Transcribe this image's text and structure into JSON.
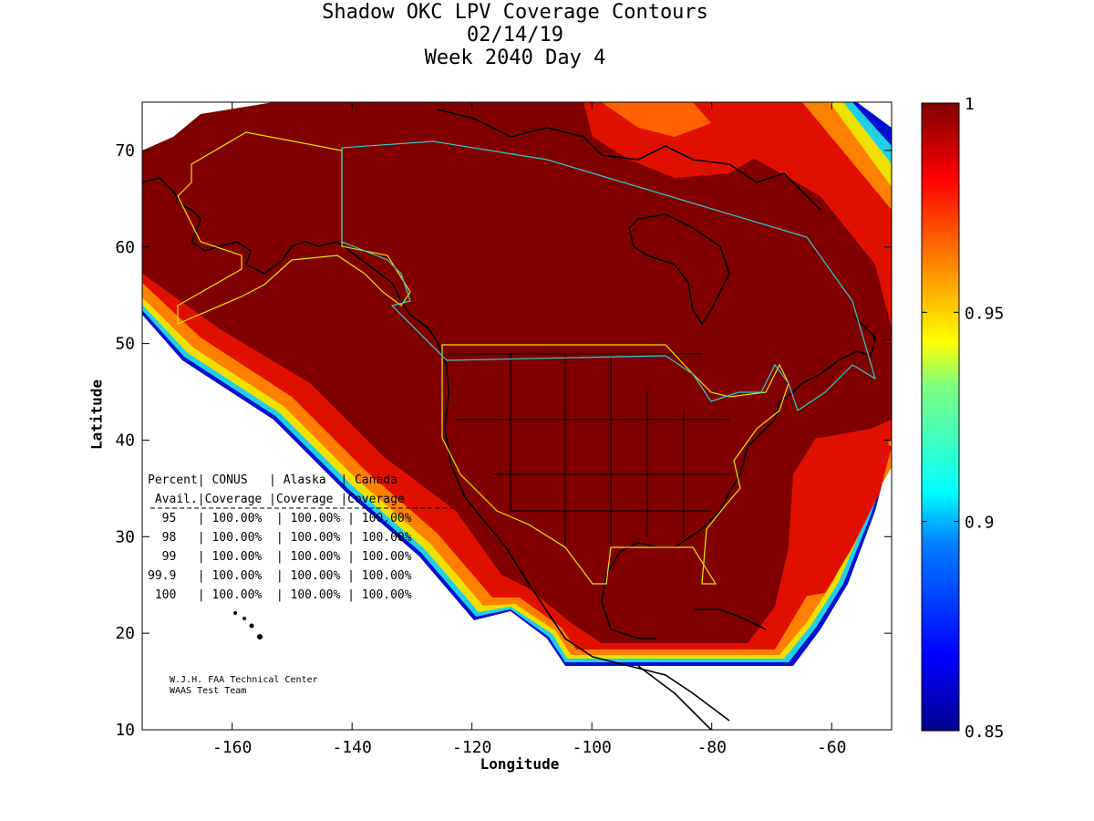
{
  "title_lines": [
    "Shadow OKC LPV Coverage Contours",
    "02/14/19",
    "Week 2040 Day 4"
  ],
  "chart_data": {
    "type": "heatmap",
    "title": "Shadow OKC LPV Coverage Contours 02/14/19 Week 2040 Day 4",
    "xlabel": "Longitude",
    "ylabel": "Latitude",
    "xlim": [
      -175,
      -50
    ],
    "ylim": [
      10,
      75
    ],
    "x_ticks": [
      -160,
      -140,
      -120,
      -100,
      -80,
      -60
    ],
    "y_ticks": [
      10,
      20,
      30,
      40,
      50,
      60,
      70
    ],
    "colorbar": {
      "min": 0.85,
      "max": 1,
      "ticks": [
        0.85,
        0.9,
        0.95,
        1
      ],
      "tick_labels": [
        "0.85",
        "0.9",
        "0.95",
        "1"
      ],
      "colormap": "jet"
    },
    "table": {
      "header_row1": "Percent| CONUS   | Alaska  | Canada",
      "header_row2": " Avail.|Coverage |Coverage |Coverage",
      "rows": [
        "  95   | 100.00%  | 100.00% | 100.00%",
        "  98   | 100.00%  | 100.00% | 100.00%",
        "  99   | 100.00%  | 100.00% | 100.00%",
        "99.9   | 100.00%  | 100.00% | 100.00%",
        " 100   | 100.00%  | 100.00% | 100.00%"
      ]
    },
    "credit": [
      "W.J.H. FAA Technical Center",
      "WAAS Test Team"
    ]
  },
  "colors": {
    "max": "#800000",
    "high": "#e01000",
    "orange": "#ff8000",
    "yellow": "#ffee00",
    "cyan": "#20e0e0",
    "blue": "#0030ff",
    "darkblue": "#00008f",
    "boundary_conus": "#e6e600",
    "boundary_canada": "#33cccc"
  }
}
